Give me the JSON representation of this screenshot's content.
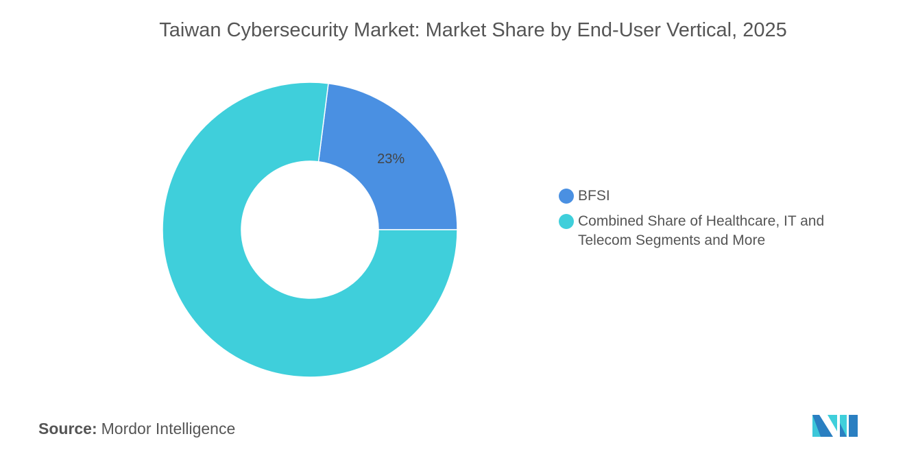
{
  "chart_data": {
    "type": "pie",
    "donut": true,
    "title": "Taiwan Cybersecurity Market: Market Share by End-User Vertical, 2025",
    "slices": [
      {
        "label": "BFSI",
        "value": 23,
        "color": "#4a90e2",
        "data_label": "23%"
      },
      {
        "label": "Combined Share of Healthcare, IT and Telecom Segments and More",
        "value": 77,
        "color": "#3fcfdb"
      }
    ],
    "legend_position": "right"
  },
  "source": {
    "label": "Source:",
    "value": "Mordor Intelligence"
  }
}
